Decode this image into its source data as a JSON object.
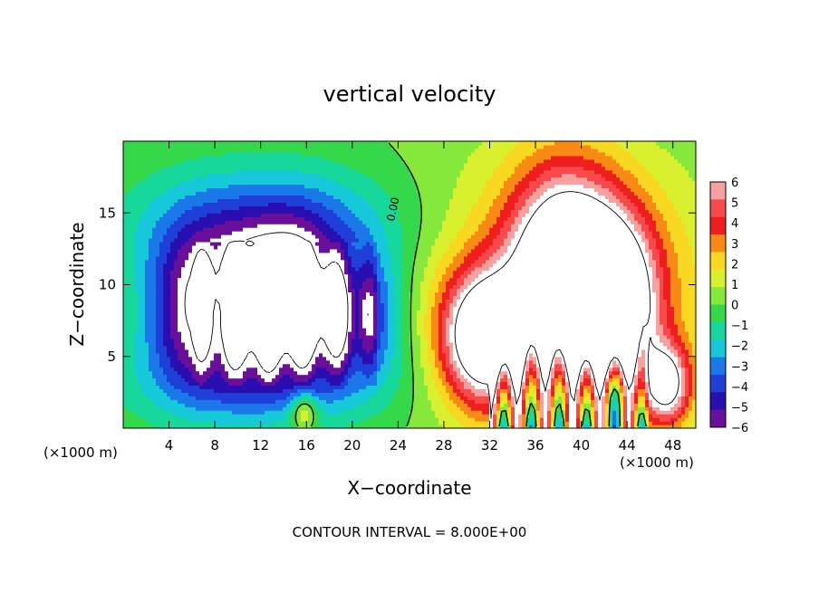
{
  "chart_data": {
    "type": "heatmap",
    "title": "vertical velocity",
    "xlabel": "X−coordinate",
    "ylabel": "Z−coordinate",
    "x_unit_left": "(×1000 m)",
    "x_unit_right": "(×1000 m)",
    "footer": "CONTOUR INTERVAL = 8.000E+00",
    "contour_label": "0.00",
    "xlim": [
      0,
      50
    ],
    "ylim": [
      0,
      20
    ],
    "x_ticks": [
      4,
      8,
      12,
      16,
      20,
      24,
      28,
      32,
      36,
      40,
      44,
      48
    ],
    "y_ticks": [
      5,
      10,
      15
    ],
    "colorbar": {
      "ticks": [
        "6",
        "5",
        "4",
        "3",
        "2",
        "1",
        "0",
        "−1",
        "−2",
        "−3",
        "−4",
        "−5",
        "−6"
      ],
      "range": [
        -6,
        6
      ]
    },
    "features": [
      {
        "sign": "negative",
        "cx": 6.5,
        "cz": 8.5,
        "sx": 3.0,
        "sz": 3.6,
        "amp": -7.5
      },
      {
        "sign": "negative",
        "cx": 11.5,
        "cz": 8.5,
        "sx": 2.2,
        "sz": 3.2,
        "amp": -6.5
      },
      {
        "sign": "negative",
        "cx": 15.0,
        "cz": 9.0,
        "sx": 2.2,
        "sz": 3.3,
        "amp": -7.0
      },
      {
        "sign": "negative",
        "cx": 19.5,
        "cz": 8.0,
        "sx": 3.0,
        "sz": 3.0,
        "amp": -7.5
      },
      {
        "sign": "negative",
        "cx": 13.0,
        "cz": 14.0,
        "sx": 8.0,
        "sz": 3.0,
        "amp": -4.5
      },
      {
        "sign": "negative",
        "cx": 12.0,
        "cz": 3.5,
        "sx": 8.0,
        "sz": 2.5,
        "amp": -3.5
      },
      {
        "sign": "positive",
        "cx": 31.5,
        "cz": 6.2,
        "sx": 2.6,
        "sz": 3.2,
        "amp": 10.0
      },
      {
        "sign": "positive",
        "cx": 38.5,
        "cz": 11.0,
        "sx": 3.2,
        "sz": 4.8,
        "amp": 10.0
      },
      {
        "sign": "positive",
        "cx": 43.0,
        "cz": 8.5,
        "sx": 2.6,
        "sz": 4.2,
        "amp": 9.0
      },
      {
        "sign": "positive",
        "cx": 47.5,
        "cz": 3.0,
        "sx": 1.5,
        "sz": 2.0,
        "amp": 8.0
      },
      {
        "sign": "positive",
        "cx": 38.5,
        "cz": 10.0,
        "sx": 9.0,
        "sz": 6.5,
        "amp": 4.0
      },
      {
        "sign": "positive",
        "cx": 15.8,
        "cz": 1.2,
        "sx": 0.8,
        "sz": 0.9,
        "amp": 4.0
      },
      {
        "sign": "negative",
        "cx": 43.0,
        "cz": 2.2,
        "sx": 0.8,
        "sz": 1.5,
        "amp": -3.5
      }
    ]
  }
}
